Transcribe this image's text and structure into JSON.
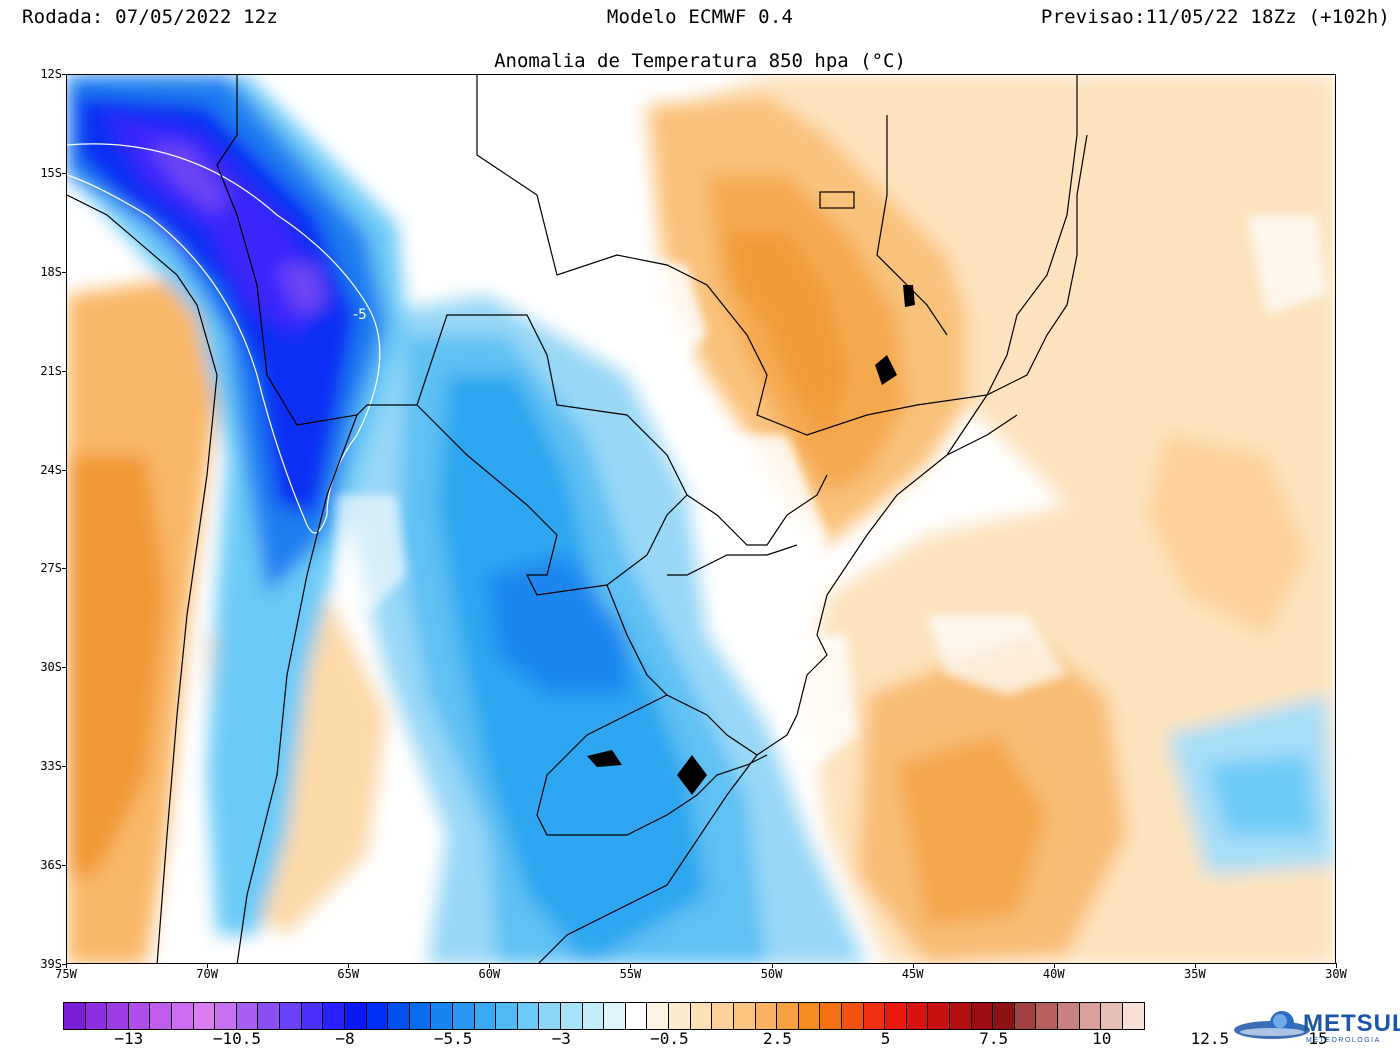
{
  "header": {
    "run": "Rodada: 07/05/2022 12z",
    "model": "Modelo ECMWF 0.4",
    "forecast": "Previsao:11/05/22 18Zz (+102h)"
  },
  "map_title": "Anomalia de Temperatura 850 hpa (°C)",
  "contour_label": "-5",
  "lat_labels": [
    "12S",
    "15S",
    "18S",
    "21S",
    "24S",
    "27S",
    "30S",
    "33S",
    "36S",
    "39S"
  ],
  "lon_labels": [
    "75W",
    "70W",
    "65W",
    "60W",
    "55W",
    "50W",
    "45W",
    "40W",
    "35W",
    "30W"
  ],
  "colorbar": {
    "labels": [
      "-13",
      "-10.5",
      "-8",
      "-5.5",
      "-3",
      "-0.5",
      "2.5",
      "5",
      "7.5",
      "10",
      "12.5",
      "15"
    ],
    "colors": [
      "#7b1fd8",
      "#8f2ee0",
      "#a03ce6",
      "#b04cea",
      "#c05ced",
      "#cf6df0",
      "#dc7ef2",
      "#c770f0",
      "#a65ef2",
      "#8a50f5",
      "#6a40f8",
      "#4c30fb",
      "#2a20fd",
      "#0a1af5",
      "#0030f5",
      "#0050f0",
      "#0a6cf0",
      "#1884f0",
      "#2898f2",
      "#38aaf4",
      "#50bcf5",
      "#6ccaf6",
      "#8ad6f7",
      "#a8e2f8",
      "#c4ecfa",
      "#def5fc",
      "#ffffff",
      "#fff5e6",
      "#feeacc",
      "#fde0b6",
      "#fcd29a",
      "#fbc37e",
      "#f9b262",
      "#f7a040",
      "#f58c22",
      "#f37010",
      "#f25010",
      "#f03010",
      "#e81a0e",
      "#d81410",
      "#c81010",
      "#b40e10",
      "#9c0c10",
      "#8a1212",
      "#a04040",
      "#b86060",
      "#c88080",
      "#d8a098",
      "#e8c0b8",
      "#f6e0d8"
    ]
  },
  "logo": {
    "name": "METSUL",
    "sub": "METEOROLOGIA"
  }
}
